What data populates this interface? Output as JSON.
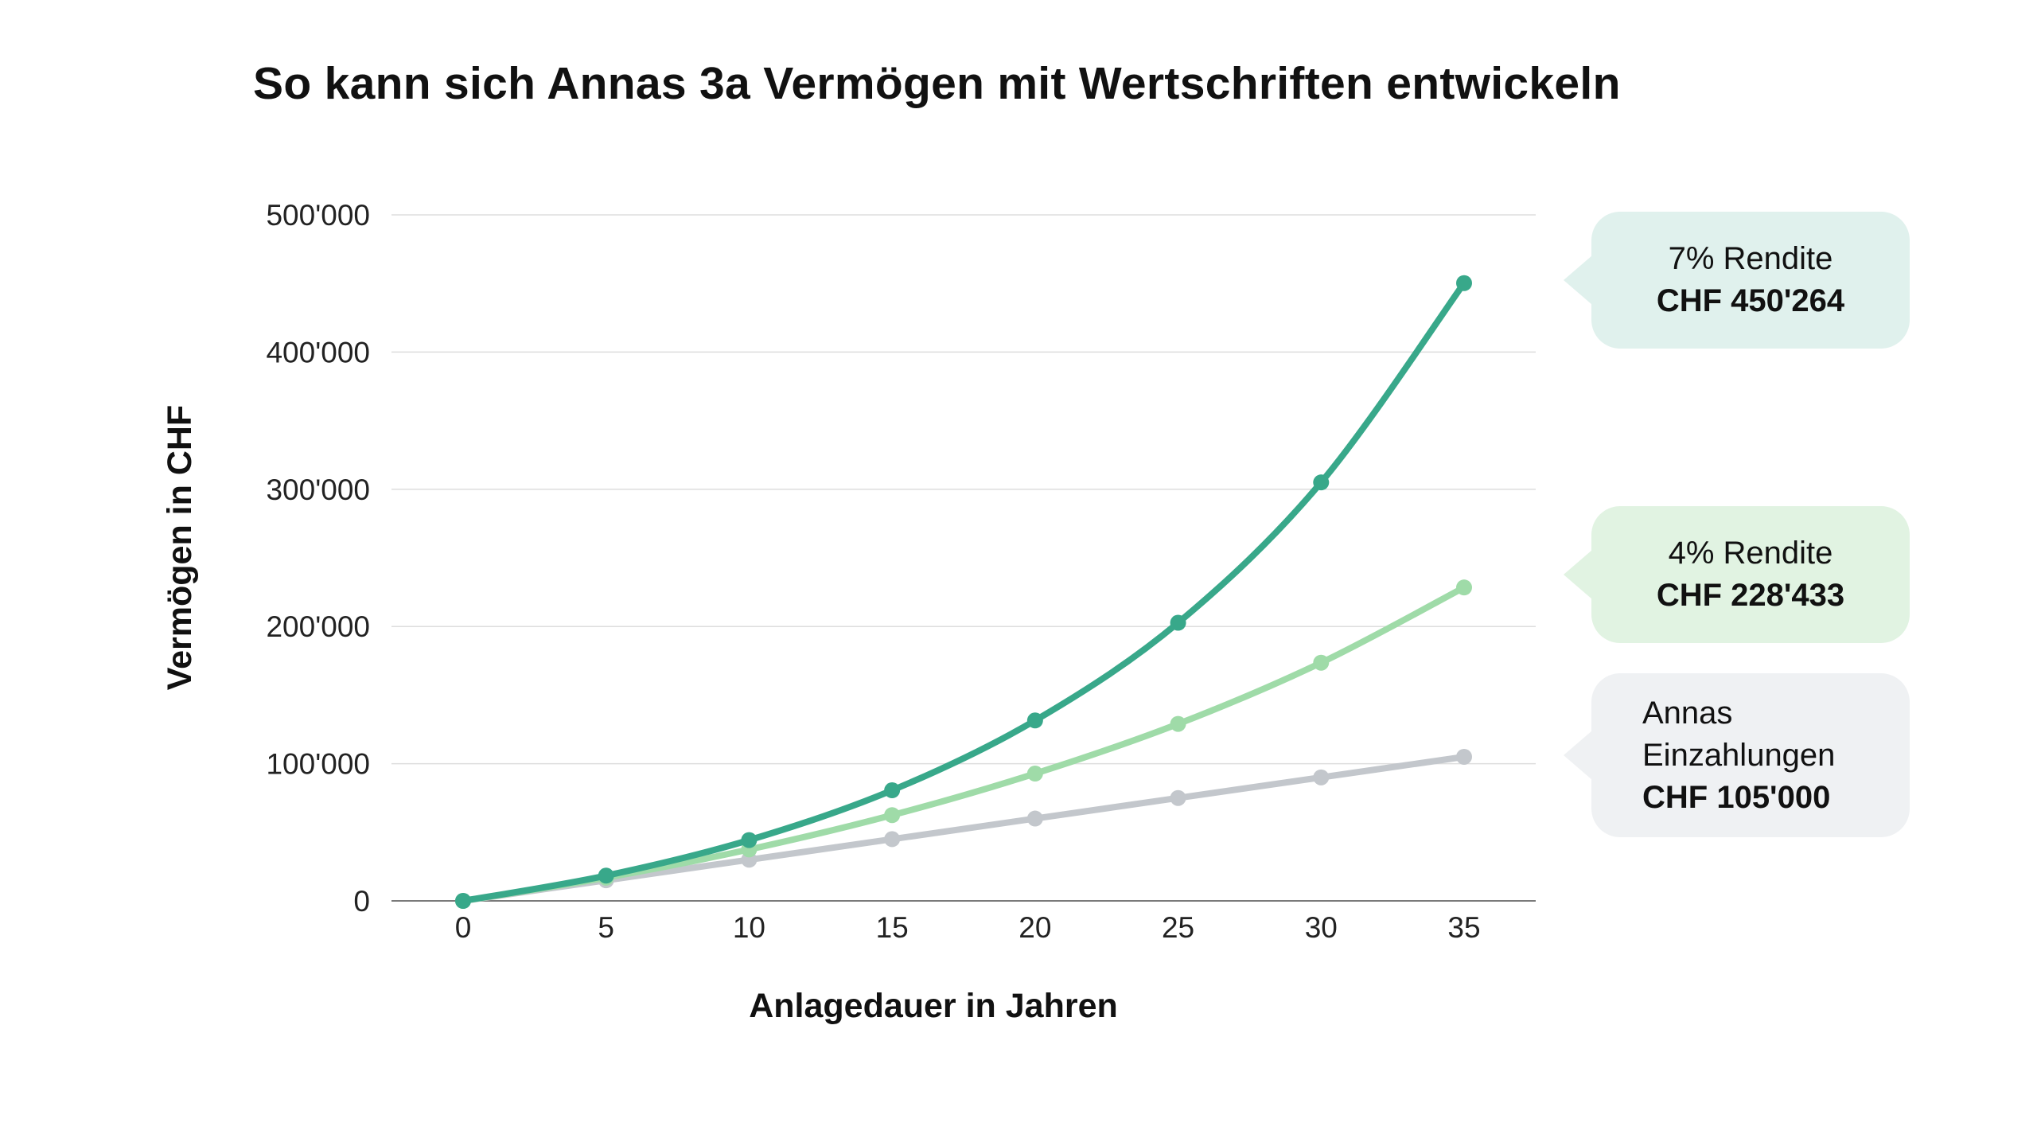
{
  "chart_data": {
    "type": "line",
    "title": "So kann sich Annas 3a Vermögen mit Wertschriften entwickeln",
    "xlabel": "Anlagedauer in Jahren",
    "ylabel": "Vermögen in CHF",
    "x": [
      0,
      5,
      10,
      15,
      20,
      25,
      30,
      35
    ],
    "xticks": [
      "0",
      "5",
      "10",
      "15",
      "20",
      "25",
      "30",
      "35"
    ],
    "yticks": [
      {
        "value": 0,
        "label": "0"
      },
      {
        "value": 100000,
        "label": "100'000"
      },
      {
        "value": 200000,
        "label": "200'000"
      },
      {
        "value": 300000,
        "label": "300'000"
      },
      {
        "value": 400000,
        "label": "400'000"
      },
      {
        "value": 500000,
        "label": "500'000"
      }
    ],
    "ylim": [
      0,
      500000
    ],
    "grid": "horizontal",
    "series": [
      {
        "key": "deposits",
        "color": "#c3c7cc",
        "values": [
          0,
          15000,
          30000,
          45000,
          60000,
          75000,
          90000,
          105000
        ]
      },
      {
        "key": "r4",
        "color": "#9fdba8",
        "values": [
          0,
          16900,
          37500,
          62500,
          92800,
          129000,
          173600,
          228433
        ]
      },
      {
        "key": "r7",
        "color": "#38a88a",
        "values": [
          0,
          18400,
          44300,
          80600,
          131500,
          202700,
          305000,
          450264
        ]
      }
    ],
    "callouts": [
      {
        "id": "r7",
        "lines": [
          "7% Rendite"
        ],
        "value": "CHF 450'264",
        "bg": "#e0f1ed"
      },
      {
        "id": "r4",
        "lines": [
          "4% Rendite"
        ],
        "value": "CHF 228'433",
        "bg": "#e1f3e2"
      },
      {
        "id": "deposits",
        "lines": [
          "Annas",
          "Einzahlungen"
        ],
        "value": "CHF 105'000",
        "bg": "#eff1f3"
      }
    ]
  }
}
